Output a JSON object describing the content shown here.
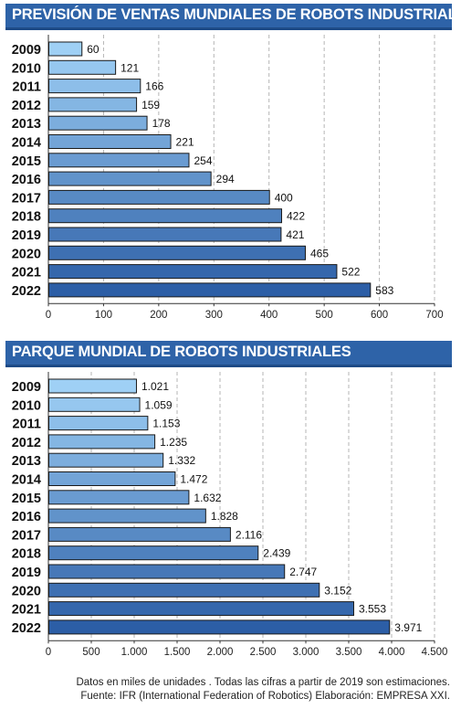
{
  "colors": {
    "title_bg": "#2e63a8",
    "bar_light": "#9fd0f5",
    "bar_dark": "#2c5ea6",
    "bar_border": "#1a1a1a",
    "grid": "#b5b5b5"
  },
  "chart_data": [
    {
      "type": "bar",
      "orientation": "horizontal",
      "title": "PREVISIÓN DE VENTAS MUNDIALES DE ROBOTS INDUSTRIALES",
      "categories": [
        "2009",
        "2010",
        "2011",
        "2012",
        "2013",
        "2014",
        "2015",
        "2016",
        "2017",
        "2018",
        "2019",
        "2020",
        "2021",
        "2022"
      ],
      "values": [
        60,
        121,
        166,
        159,
        178,
        221,
        254,
        294,
        400,
        422,
        421,
        465,
        522,
        583
      ],
      "value_labels": [
        "60",
        "121",
        "166",
        "159",
        "178",
        "221",
        "254",
        "294",
        "400",
        "422",
        "421",
        "465",
        "522",
        "583"
      ],
      "xlim": [
        0,
        700
      ],
      "xticks": [
        0,
        100,
        200,
        300,
        400,
        500,
        600,
        700
      ],
      "xtick_labels": [
        "0",
        "100",
        "200",
        "300",
        "400",
        "500",
        "600",
        "700"
      ],
      "grid": true
    },
    {
      "type": "bar",
      "orientation": "horizontal",
      "title": "PARQUE MUNDIAL DE ROBOTS INDUSTRIALES",
      "categories": [
        "2009",
        "2010",
        "2011",
        "2012",
        "2013",
        "2014",
        "2015",
        "2016",
        "2017",
        "2018",
        "2019",
        "2020",
        "2021",
        "2022"
      ],
      "values": [
        1021,
        1059,
        1153,
        1235,
        1332,
        1472,
        1632,
        1828,
        2116,
        2439,
        2747,
        3152,
        3553,
        3971
      ],
      "value_labels": [
        "1.021",
        "1.059",
        "1.153",
        "1.235",
        "1.332",
        "1.472",
        "1.632",
        "1.828",
        "2.116",
        "2.439",
        "2.747",
        "3.152",
        "3.553",
        "3.971"
      ],
      "xlim": [
        0,
        4500
      ],
      "xticks": [
        0,
        500,
        1000,
        1500,
        2000,
        2500,
        3000,
        3500,
        4000,
        4500
      ],
      "xtick_labels": [
        "0",
        "500",
        "1.000",
        "1.500",
        "2.000",
        "2.500",
        "3.000",
        "3.500",
        "4.000",
        "4.500"
      ],
      "grid": true
    }
  ],
  "footer": {
    "line1": "Datos en miles de unidades . Todas las cifras a partir de 2019 son estimaciones.",
    "line2": "Fuente: IFR (International Federation of Robotics) Elaboración: EMPRESA XXI."
  }
}
